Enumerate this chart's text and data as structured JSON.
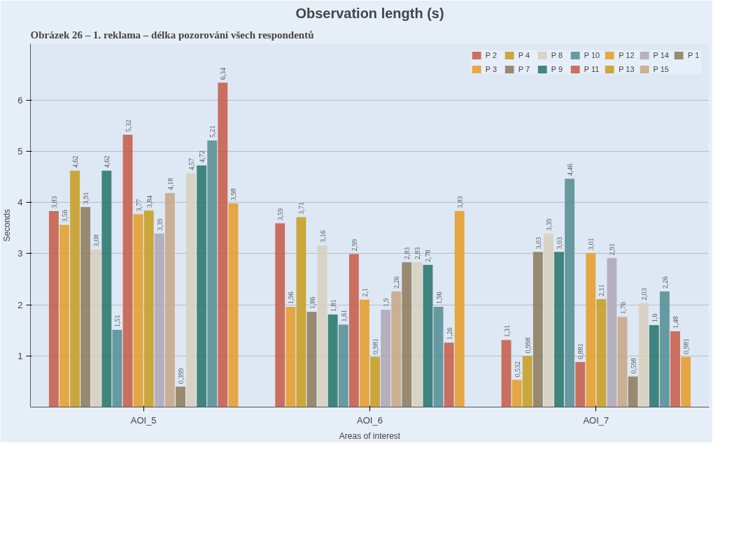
{
  "chart_data": {
    "type": "bar",
    "title": "Observation length (s)",
    "xlabel": "Areas of interest",
    "ylabel": "Seconds",
    "annotations": [
      "Obrázek 26 – 1. reklama – délka pozorování všech respondentů"
    ],
    "categories": [
      "AOI_5",
      "AOI_6",
      "AOI_7"
    ],
    "series": [
      {
        "name": "P 2",
        "color": "#c8604f",
        "values": [
          3.83,
          3.59,
          1.31
        ],
        "value_labels": [
          "3,83",
          "3,59",
          "1,31"
        ]
      },
      {
        "name": "P 3",
        "color": "#e5a030",
        "values": [
          3.56,
          1.96,
          0.532
        ],
        "value_labels": [
          "3,56",
          "1,96",
          "0,532"
        ]
      },
      {
        "name": "P 4",
        "color": "#c8a028",
        "values": [
          4.62,
          3.71,
          0.998
        ],
        "value_labels": [
          "4,62",
          "3,71",
          "0,998"
        ]
      },
      {
        "name": "P 7",
        "color": "#8f8060",
        "values": [
          3.91,
          1.86,
          3.03
        ],
        "value_labels": [
          "3,91",
          "1,86",
          "3,03"
        ]
      },
      {
        "name": "P 8",
        "color": "#d8d0c0",
        "values": [
          3.08,
          3.16,
          3.39
        ],
        "value_labels": [
          "3,08",
          "3,16",
          "3,39"
        ]
      },
      {
        "name": "P 9",
        "color": "#2e7a70",
        "values": [
          4.62,
          1.81,
          3.03
        ],
        "value_labels": [
          "4,62",
          "1,81",
          "3,03"
        ]
      },
      {
        "name": "P 10",
        "color": "#5a9098",
        "values": [
          1.51,
          1.61,
          4.46
        ],
        "value_labels": [
          "1,51",
          "1,61",
          "4,46"
        ]
      },
      {
        "name": "P 11",
        "color": "#c8604f",
        "values": [
          5.32,
          2.99,
          0.881
        ],
        "value_labels": [
          "5,32",
          "2,99",
          "0,881"
        ]
      },
      {
        "name": "P 12",
        "color": "#e5a030",
        "values": [
          3.77,
          2.1,
          3.01
        ],
        "value_labels": [
          "3,77",
          "2,1",
          "3,01"
        ]
      },
      {
        "name": "P 13",
        "color": "#c8a028",
        "values": [
          3.84,
          0.981,
          2.11
        ],
        "value_labels": [
          "3,84",
          "0,981",
          "2,11"
        ]
      },
      {
        "name": "P 14",
        "color": "#b0a8b8",
        "values": [
          3.39,
          1.9,
          2.91
        ],
        "value_labels": [
          "3,39",
          "1,9",
          "2,91"
        ]
      },
      {
        "name": "P 15",
        "color": "#c8a888",
        "values": [
          4.18,
          2.26,
          1.76
        ],
        "value_labels": [
          "4,18",
          "2,26",
          "1,76"
        ]
      },
      {
        "name": "P 1",
        "color": "#8f8060",
        "values": [
          0.399,
          2.83,
          0.598
        ],
        "value_labels": [
          "0,399",
          "2,83",
          "0,598"
        ]
      },
      {
        "color": "#d8d0c0",
        "values": [
          4.57,
          2.83,
          2.03
        ],
        "value_labels": [
          "4,57",
          "2,83",
          "2,03"
        ]
      },
      {
        "color": "#2e7a70",
        "values": [
          4.72,
          2.78,
          1.6
        ],
        "value_labels": [
          "4,72",
          "2,78",
          "1,6"
        ]
      },
      {
        "color": "#5a9098",
        "values": [
          5.21,
          1.96,
          2.26
        ],
        "value_labels": [
          "5,21",
          "1,96",
          "2,26"
        ]
      },
      {
        "color": "#c8604f",
        "values": [
          6.34,
          1.26,
          1.48
        ],
        "value_labels": [
          "6,34",
          "1,26",
          "1,48"
        ]
      },
      {
        "color": "#e5a030",
        "values": [
          3.98,
          3.83,
          0.981
        ],
        "value_labels": [
          "3,98",
          "3,83",
          "0,981"
        ]
      }
    ],
    "ylim": [
      0,
      7.1
    ],
    "yticks": [
      1,
      2,
      3,
      4,
      5,
      6
    ],
    "grid": "y",
    "legend": "top right"
  }
}
